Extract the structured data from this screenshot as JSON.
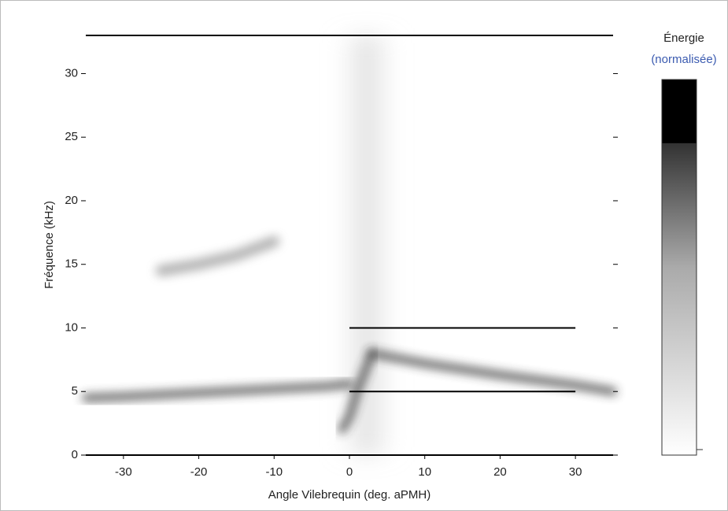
{
  "chart_data": {
    "type": "spectrogram",
    "xlabel": "Angle Vilebrequin (deg. aPMH)",
    "ylabel": "Fréquence (kHz)",
    "colorbar_title": "Énergie",
    "colorbar_subtitle": "(normalisée)",
    "xlim": [
      -35,
      35
    ],
    "xticks": [
      -30,
      -20,
      -10,
      0,
      10,
      20,
      30
    ],
    "ylim": [
      0,
      33
    ],
    "yticks": [
      0,
      5,
      10,
      15,
      20,
      25,
      30
    ],
    "ridges": [
      {
        "x": [
          -35,
          -30,
          -20,
          -10,
          -3,
          0
        ],
        "y": [
          4.5,
          4.6,
          4.9,
          5.2,
          5.4,
          5.6
        ]
      },
      {
        "x": [
          3,
          10,
          20,
          30,
          35
        ],
        "y": [
          8,
          7.2,
          6.3,
          5.5,
          5
        ]
      },
      {
        "x": [
          -25,
          -20,
          -15,
          -10
        ],
        "y": [
          14.5,
          15,
          15.7,
          16.8
        ]
      },
      {
        "x": [
          -1,
          0,
          1,
          3
        ],
        "y": [
          2,
          3,
          5,
          8
        ]
      }
    ],
    "bands": [
      {
        "x": [
          0,
          30
        ],
        "y": 10
      },
      {
        "x": [
          0,
          30
        ],
        "y": 5
      }
    ]
  }
}
